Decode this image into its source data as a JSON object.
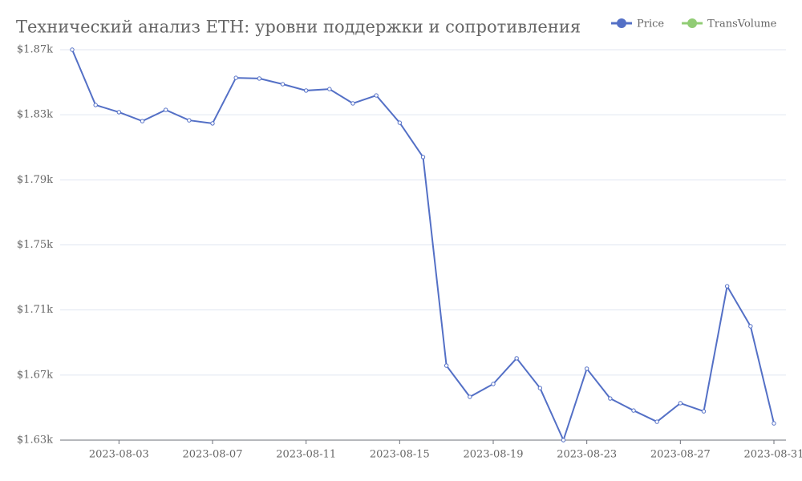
{
  "chart_data": {
    "type": "line",
    "title": "Технический анализ ETH: уровни поддержки и сопротивления",
    "x": [
      "2023-08-01",
      "2023-08-02",
      "2023-08-03",
      "2023-08-04",
      "2023-08-05",
      "2023-08-06",
      "2023-08-07",
      "2023-08-08",
      "2023-08-09",
      "2023-08-10",
      "2023-08-11",
      "2023-08-12",
      "2023-08-13",
      "2023-08-14",
      "2023-08-15",
      "2023-08-16",
      "2023-08-17",
      "2023-08-18",
      "2023-08-19",
      "2023-08-20",
      "2023-08-21",
      "2023-08-22",
      "2023-08-23",
      "2023-08-24",
      "2023-08-25",
      "2023-08-26",
      "2023-08-27",
      "2023-08-28",
      "2023-08-29",
      "2023-08-30",
      "2023-08-31"
    ],
    "xticks": [
      "2023-08-03",
      "2023-08-07",
      "2023-08-11",
      "2023-08-15",
      "2023-08-19",
      "2023-08-23",
      "2023-08-27",
      "2023-08-31"
    ],
    "series": [
      {
        "name": "Price",
        "color": "#5470c6",
        "values": [
          1870,
          1836,
          1831.6,
          1826.1,
          1833,
          1826.6,
          1824.7,
          1852.7,
          1852.3,
          1848.8,
          1844.9,
          1845.8,
          1837,
          1841.9,
          1825.1,
          1804,
          1675.8,
          1656.6,
          1664.5,
          1680.3,
          1662,
          1630,
          1673.9,
          1655.6,
          1648.2,
          1641.3,
          1652.7,
          1647.7,
          1724.6,
          1700,
          1640.3
        ]
      },
      {
        "name": "TransVolume",
        "color": "#91cc75",
        "values": [
          null,
          null,
          null,
          null,
          null,
          null,
          null,
          null,
          null,
          null,
          null,
          null,
          null,
          null,
          null,
          null,
          null,
          null,
          null,
          null,
          null,
          null,
          null,
          null,
          null,
          null,
          null,
          null,
          null,
          null,
          null
        ]
      }
    ],
    "ylim": [
      1630,
      1870
    ],
    "yticks": [
      {
        "value": 1630,
        "label": "$1.63k"
      },
      {
        "value": 1670,
        "label": "$1.67k"
      },
      {
        "value": 1710,
        "label": "$1.71k"
      },
      {
        "value": 1750,
        "label": "$1.75k"
      },
      {
        "value": 1790,
        "label": "$1.79k"
      },
      {
        "value": 1830,
        "label": "$1.83k"
      },
      {
        "value": 1870,
        "label": "$1.87k"
      }
    ],
    "grid": true
  }
}
